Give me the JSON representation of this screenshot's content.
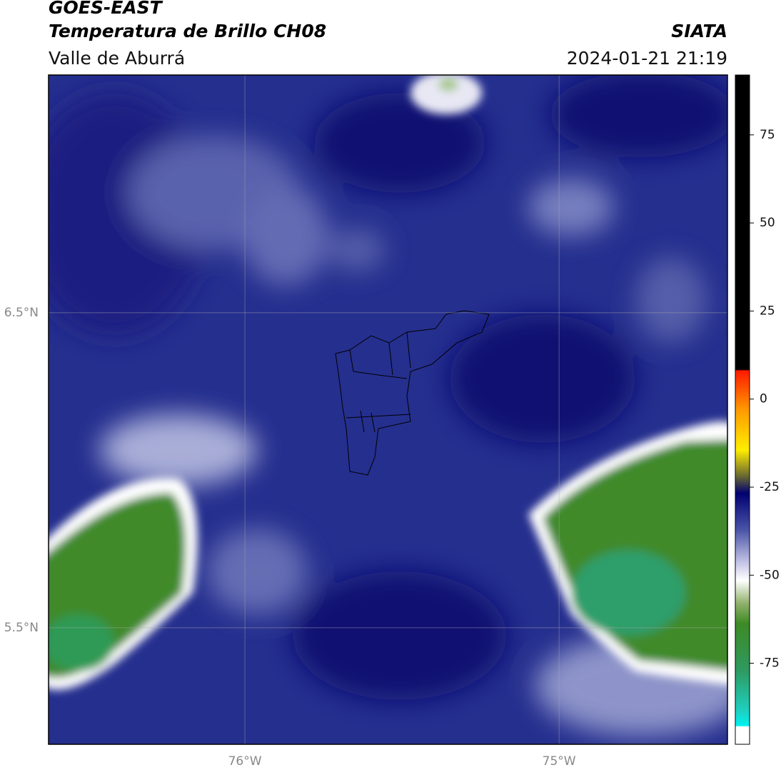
{
  "header": {
    "title": "GOES-EAST",
    "subtitle": "Temperatura de Brillo CH08",
    "region": "Valle de Aburrá",
    "source": "SIATA",
    "datetime": "2024-01-21 21:19"
  },
  "map": {
    "xlim": [
      -76.625,
      -74.464
    ],
    "ylim": [
      5.13,
      7.255
    ],
    "xticks": [
      {
        "value": -76,
        "label": "76°W"
      },
      {
        "value": -75,
        "label": "75°W"
      }
    ],
    "yticks": [
      {
        "value": 6.5,
        "label": "6.5°N"
      },
      {
        "value": 5.5,
        "label": "5.5°N"
      }
    ],
    "grid": true
  },
  "colorbar": {
    "lim": [
      -98,
      92
    ],
    "ticks": [
      75,
      50,
      25,
      0,
      -25,
      -50,
      -75
    ]
  }
}
